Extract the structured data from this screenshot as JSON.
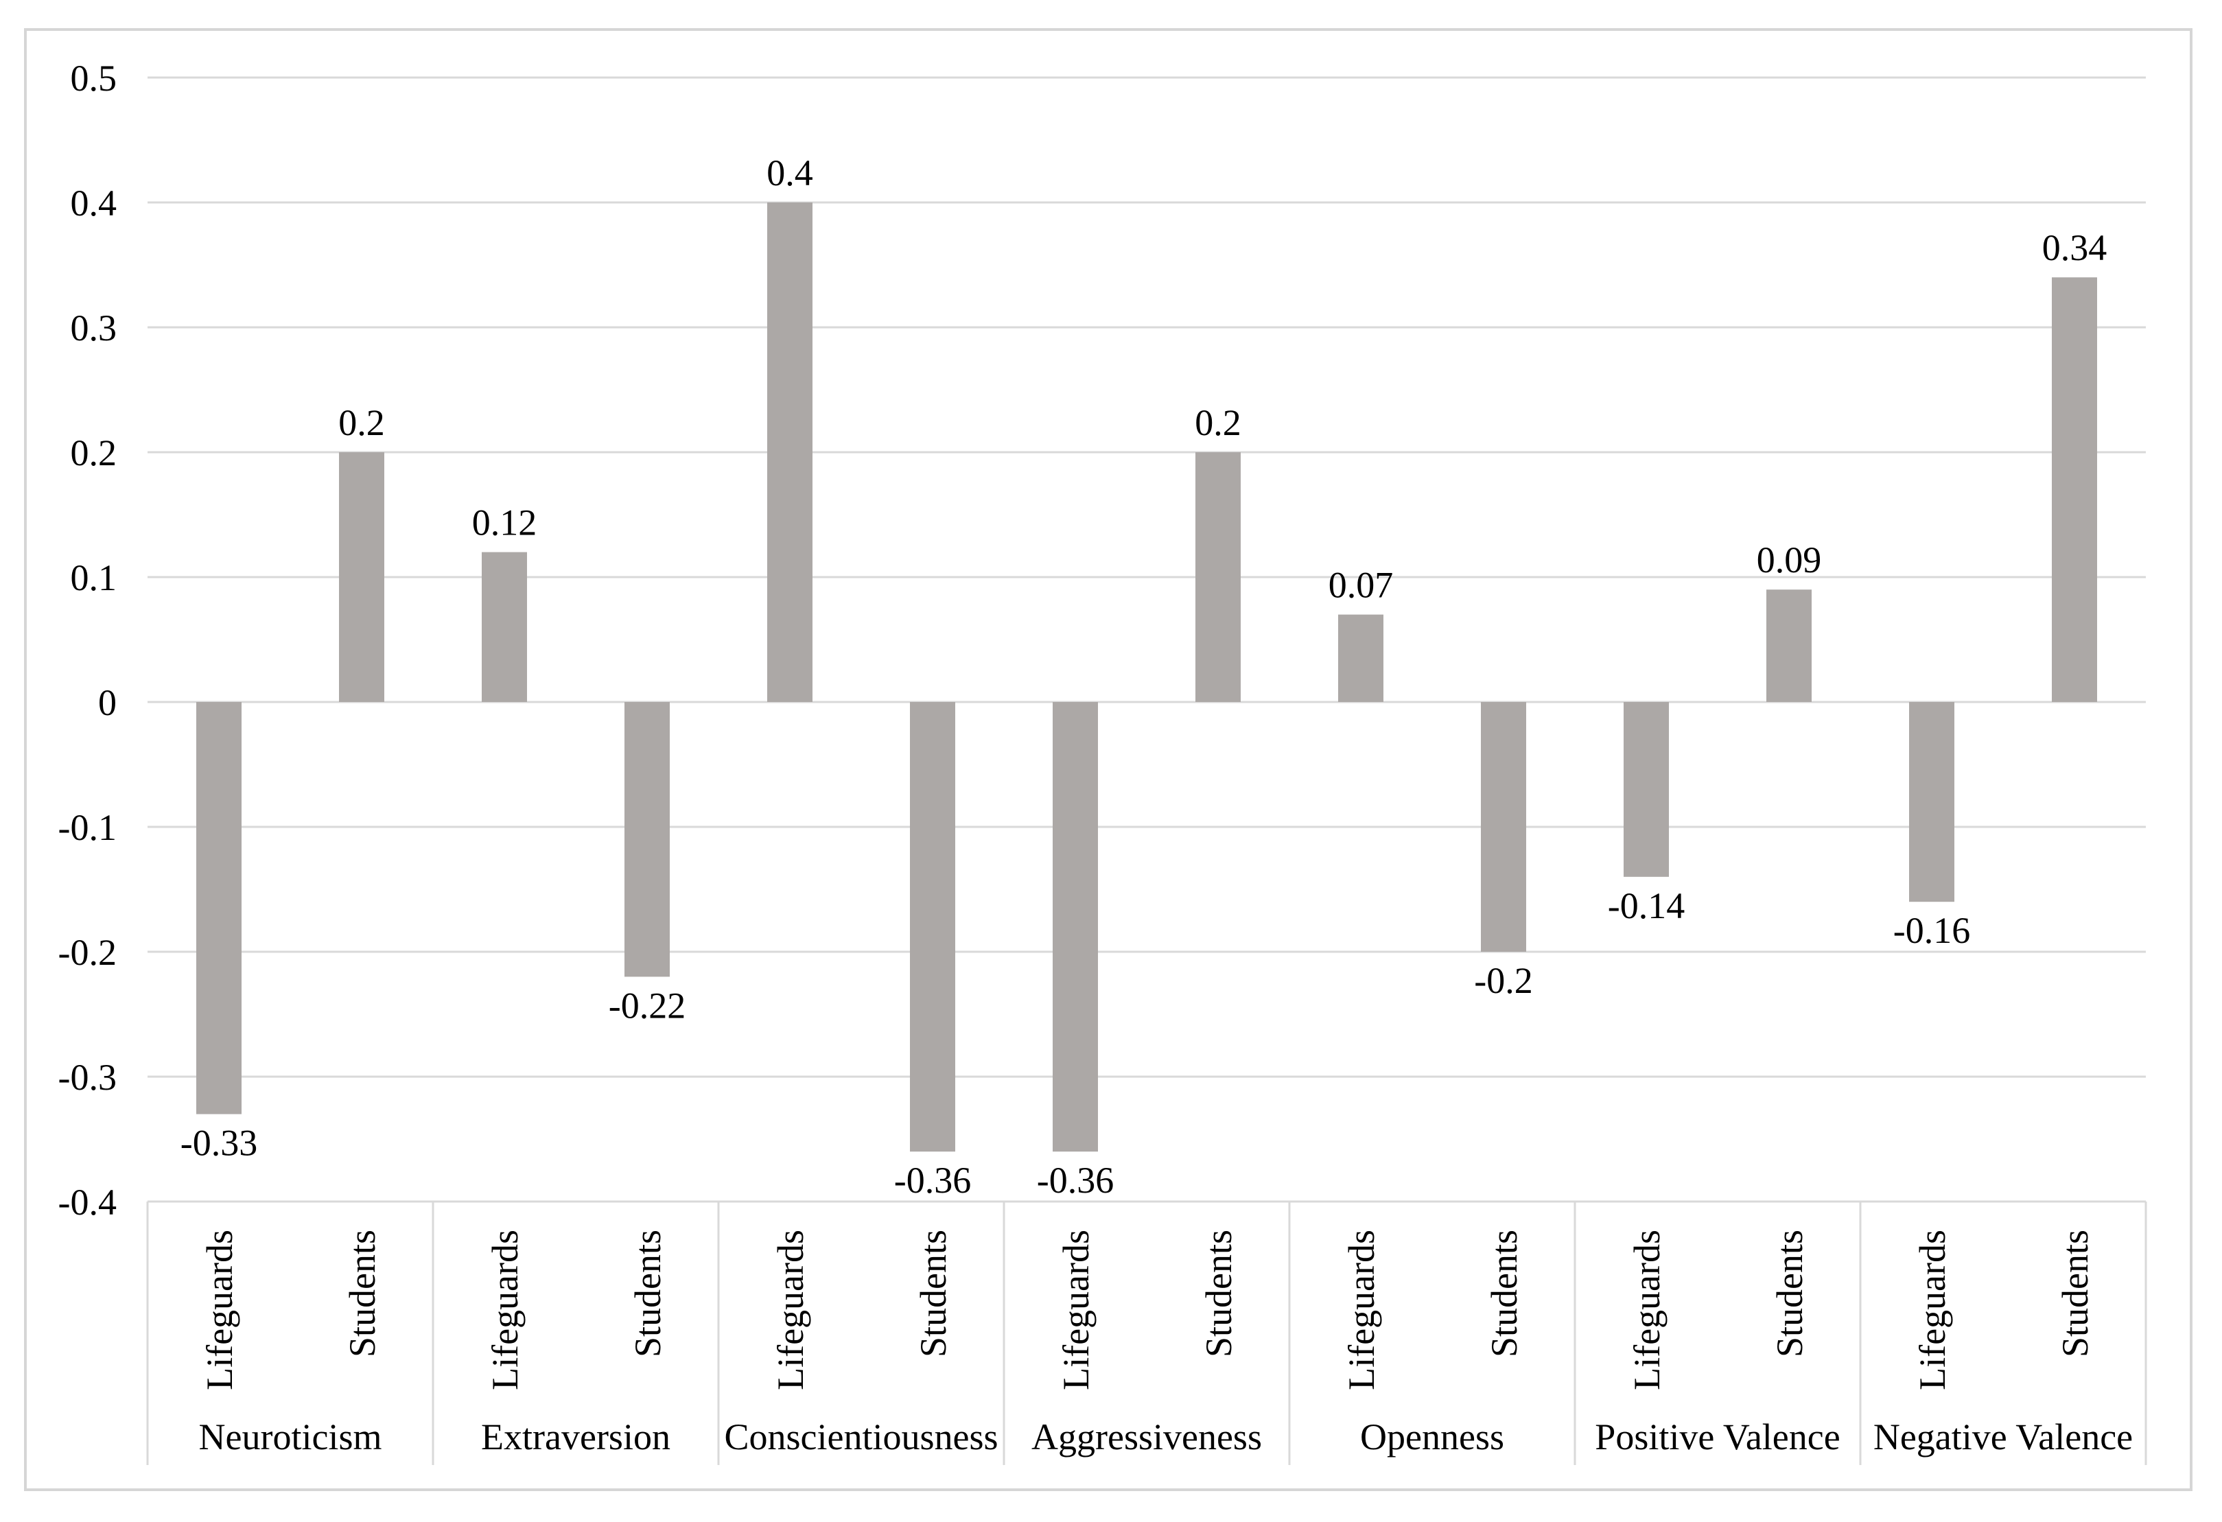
{
  "chart_data": {
    "type": "bar",
    "title": "",
    "categories": [
      "Neuroticism",
      "Extraversion",
      "Conscientiousness",
      "Aggressiveness",
      "Openness",
      "Positive Valence",
      "Negative Valence"
    ],
    "bar_group_labels": [
      "Lifeguards",
      "Students"
    ],
    "series": [
      {
        "name": "Lifeguards",
        "values": [
          -0.33,
          0.12,
          0.4,
          -0.36,
          0.07,
          -0.14,
          -0.16
        ]
      },
      {
        "name": "Students",
        "values": [
          0.2,
          -0.22,
          -0.36,
          0.2,
          -0.2,
          0.09,
          0.34
        ]
      }
    ],
    "data_labels": {
      "Lifeguards": [
        "-0.33",
        "0.12",
        "0.4",
        "-0.36",
        "0.07",
        "-0.14",
        "-0.16"
      ],
      "Students": [
        "0.2",
        "-0.22",
        "-0.36",
        "0.2",
        "-0.2",
        "0.09",
        "0.34"
      ]
    },
    "y_ticks": [
      0.5,
      0.4,
      0.3,
      0.2,
      0.1,
      0,
      -0.1,
      -0.2,
      -0.3,
      -0.4
    ],
    "ylim": [
      -0.4,
      0.5
    ],
    "grid": true,
    "legend": "none",
    "data_labels_shown": true,
    "colors": {
      "bar": "#aca8a6",
      "gridline": "#d9d9d9",
      "category_line": "#d9d9d9",
      "border": "#d6d6d6",
      "text": "#000000",
      "background": "#ffffff"
    }
  }
}
